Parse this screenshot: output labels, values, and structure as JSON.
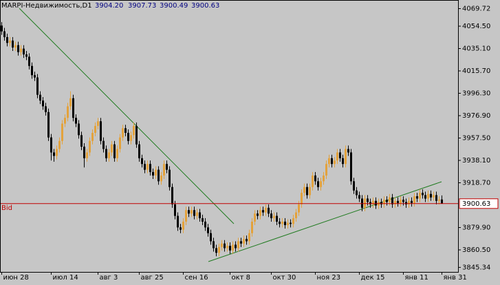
{
  "chart_data": {
    "type": "candlestick",
    "title": "MARPI-Недвижимость,D1",
    "header_values": [
      "3904.20",
      "3907.73",
      "3900.49",
      "3900.63"
    ],
    "up_color": "#e3a23c",
    "down_color": "#000000",
    "ylim": [
      3841.4,
      4075.4
    ],
    "yticks": [
      4069.72,
      {
        "value": 4054.5,
        "label": "4054.50"
      },
      {
        "value": 4035.1,
        "label": "4035.10"
      },
      {
        "value": 4015.7,
        "label": "4015.70"
      },
      {
        "value": 3996.3,
        "label": "3996.30"
      },
      {
        "value": 3976.9,
        "label": "3976.90"
      },
      {
        "value": 3957.5,
        "label": "3957.50"
      },
      {
        "value": 3938.1,
        "label": "3938.10"
      },
      {
        "value": 3918.7,
        "label": "3918.70"
      },
      {
        "value": 3879.9,
        "label": "3879.90"
      },
      {
        "value": 3860.5,
        "label": "3860.50"
      },
      3845.34
    ],
    "bid": {
      "label": "Bid",
      "value": 3900.63,
      "value_label": "3900.63",
      "color": "#c00000"
    },
    "categories": [
      "июн 28",
      null,
      null,
      null,
      null,
      null,
      null,
      null,
      null,
      null,
      null,
      null,
      null,
      null,
      null,
      null,
      null,
      null,
      "июл 14",
      null,
      null,
      null,
      null,
      null,
      null,
      null,
      null,
      null,
      null,
      null,
      null,
      null,
      null,
      null,
      null,
      "авг 3",
      null,
      null,
      null,
      null,
      null,
      null,
      null,
      null,
      null,
      null,
      null,
      null,
      null,
      null,
      "авг 25",
      null,
      null,
      null,
      null,
      null,
      null,
      null,
      null,
      null,
      null,
      null,
      null,
      null,
      null,
      null,
      "сен 16",
      null,
      null,
      null,
      null,
      null,
      null,
      null,
      null,
      null,
      null,
      null,
      null,
      null,
      null,
      null,
      null,
      "окт 8",
      null,
      null,
      null,
      null,
      null,
      null,
      null,
      null,
      null,
      null,
      null,
      null,
      null,
      null,
      "окт 30",
      null,
      null,
      null,
      null,
      null,
      null,
      null,
      null,
      null,
      null,
      null,
      null,
      null,
      null,
      null,
      "ноя 23",
      null,
      null,
      null,
      null,
      null,
      null,
      null,
      null,
      null,
      null,
      null,
      null,
      null,
      null,
      null,
      "дек 15",
      null,
      null,
      null,
      null,
      null,
      null,
      null,
      null,
      null,
      null,
      null,
      null,
      null,
      null,
      null,
      "янв 11",
      null,
      null,
      null,
      null,
      null,
      null,
      null,
      null,
      null,
      null,
      null,
      null,
      null,
      "янв 31"
    ],
    "open": [
      4055,
      4050,
      4045,
      4040,
      4042,
      4036,
      4038,
      4032,
      4035,
      4030,
      4028,
      4020,
      4012,
      4010,
      3995,
      3990,
      3985,
      3980,
      3958,
      3945,
      3942,
      3948,
      3955,
      3970,
      3975,
      3985,
      3992,
      3975,
      3970,
      3960,
      3950,
      3940,
      3945,
      3955,
      3962,
      3968,
      3972,
      3955,
      3948,
      3940,
      3945,
      3952,
      3940,
      3948,
      3958,
      3966,
      3962,
      3955,
      3960,
      3968,
      3952,
      3940,
      3935,
      3930,
      3935,
      3928,
      3925,
      3930,
      3920,
      3925,
      3935,
      3930,
      3915,
      3900,
      3890,
      3880,
      3878,
      3885,
      3895,
      3892,
      3895,
      3890,
      3893,
      3888,
      3885,
      3880,
      3875,
      3868,
      3862,
      3858,
      3863,
      3866,
      3862,
      3864,
      3860,
      3865,
      3862,
      3868,
      3866,
      3870,
      3868,
      3875,
      3885,
      3892,
      3890,
      3895,
      3893,
      3897,
      3892,
      3888,
      3890,
      3885,
      3883,
      3885,
      3882,
      3884,
      3883,
      3888,
      3893,
      3900,
      3910,
      3915,
      3908,
      3915,
      3925,
      3920,
      3915,
      3920,
      3925,
      3935,
      3940,
      3935,
      3938,
      3945,
      3940,
      3935,
      3948,
      3945,
      3920,
      3912,
      3908,
      3905,
      3897,
      3905,
      3902,
      3900,
      3903,
      3899,
      3902,
      3900,
      3904,
      3902,
      3906,
      3900,
      3903,
      3901,
      3904,
      3902,
      3900,
      3903,
      3901,
      3907,
      3905,
      3910,
      3908,
      3905,
      3909,
      3906,
      3908,
      3903,
      3904.2
    ],
    "high": [
      4058,
      4053,
      4048,
      4045,
      4045,
      4041,
      4041,
      4038,
      4038,
      4033,
      4031,
      4023,
      4015,
      4013,
      3998,
      3993,
      3988,
      3983,
      3961,
      3948,
      3951,
      3958,
      3973,
      3978,
      3988,
      3998,
      3995,
      3978,
      3973,
      3963,
      3953,
      3948,
      3958,
      3965,
      3971,
      3975,
      3975,
      3958,
      3951,
      3948,
      3955,
      3955,
      3951,
      3961,
      3969,
      3969,
      3965,
      3963,
      3971,
      3971,
      3955,
      3943,
      3938,
      3938,
      3938,
      3931,
      3933,
      3933,
      3928,
      3938,
      3938,
      3933,
      3918,
      3903,
      3893,
      3883,
      3888,
      3898,
      3898,
      3898,
      3898,
      3896,
      3896,
      3891,
      3888,
      3883,
      3878,
      3871,
      3865,
      3866,
      3869,
      3869,
      3867,
      3867,
      3868,
      3868,
      3871,
      3871,
      3873,
      3873,
      3878,
      3888,
      3895,
      3895,
      3898,
      3898,
      3900,
      3900,
      3895,
      3893,
      3893,
      3888,
      3888,
      3888,
      3887,
      3887,
      3891,
      3896,
      3903,
      3913,
      3918,
      3918,
      3918,
      3928,
      3928,
      3923,
      3923,
      3928,
      3938,
      3943,
      3943,
      3941,
      3948,
      3948,
      3943,
      3951,
      3951,
      3948,
      3923,
      3915,
      3911,
      3908,
      3908,
      3908,
      3905,
      3906,
      3906,
      3905,
      3905,
      3907,
      3907,
      3909,
      3909,
      3906,
      3906,
      3907,
      3907,
      3905,
      3906,
      3906,
      3910,
      3910,
      3913,
      3913,
      3911,
      3912,
      3912,
      3911,
      3911,
      3907,
      3907.73
    ],
    "low": [
      4047,
      4042,
      4037,
      4037,
      4033,
      4033,
      4029,
      4029,
      4027,
      4025,
      4017,
      4009,
      4007,
      3992,
      3987,
      3982,
      3977,
      3955,
      3938,
      3937,
      3939,
      3945,
      3952,
      3967,
      3972,
      3982,
      3972,
      3967,
      3957,
      3947,
      3932,
      3937,
      3942,
      3952,
      3959,
      3965,
      3952,
      3945,
      3937,
      3937,
      3942,
      3937,
      3937,
      3945,
      3955,
      3959,
      3952,
      3952,
      3957,
      3949,
      3937,
      3932,
      3927,
      3927,
      3925,
      3922,
      3922,
      3917,
      3917,
      3922,
      3927,
      3912,
      3897,
      3887,
      3877,
      3875,
      3875,
      3882,
      3889,
      3889,
      3887,
      3887,
      3885,
      3882,
      3877,
      3872,
      3865,
      3859,
      3855,
      3855,
      3860,
      3859,
      3859,
      3857,
      3857,
      3859,
      3859,
      3863,
      3863,
      3865,
      3865,
      3872,
      3882,
      3887,
      3887,
      3890,
      3890,
      3889,
      3885,
      3885,
      3882,
      3880,
      3880,
      3879,
      3879,
      3880,
      3880,
      3885,
      3890,
      3897,
      3907,
      3905,
      3905,
      3912,
      3917,
      3912,
      3912,
      3917,
      3922,
      3932,
      3932,
      3932,
      3935,
      3937,
      3932,
      3932,
      3942,
      3917,
      3909,
      3905,
      3902,
      3894,
      3894,
      3899,
      3897,
      3897,
      3896,
      3896,
      3897,
      3897,
      3899,
      3899,
      3897,
      3897,
      3898,
      3898,
      3899,
      3897,
      3897,
      3898,
      3898,
      3902,
      3902,
      3905,
      3902,
      3902,
      3903,
      3903,
      3900,
      3900,
      3900.49
    ],
    "close": [
      4050,
      4045,
      4040,
      4042,
      4036,
      4038,
      4032,
      4035,
      4030,
      4028,
      4020,
      4012,
      4010,
      3995,
      3990,
      3985,
      3980,
      3958,
      3945,
      3942,
      3948,
      3955,
      3970,
      3975,
      3985,
      3992,
      3975,
      3970,
      3960,
      3950,
      3940,
      3945,
      3955,
      3962,
      3968,
      3972,
      3955,
      3948,
      3940,
      3945,
      3952,
      3940,
      3948,
      3958,
      3966,
      3962,
      3955,
      3960,
      3968,
      3952,
      3940,
      3935,
      3930,
      3935,
      3928,
      3925,
      3930,
      3920,
      3925,
      3935,
      3930,
      3915,
      3900,
      3890,
      3880,
      3878,
      3885,
      3895,
      3892,
      3895,
      3890,
      3893,
      3888,
      3885,
      3880,
      3875,
      3868,
      3862,
      3858,
      3863,
      3866,
      3862,
      3864,
      3860,
      3865,
      3862,
      3868,
      3866,
      3870,
      3868,
      3875,
      3885,
      3892,
      3890,
      3895,
      3893,
      3897,
      3892,
      3888,
      3890,
      3885,
      3883,
      3885,
      3882,
      3884,
      3883,
      3888,
      3893,
      3900,
      3910,
      3915,
      3908,
      3915,
      3925,
      3920,
      3915,
      3920,
      3925,
      3935,
      3940,
      3935,
      3938,
      3945,
      3940,
      3935,
      3948,
      3945,
      3920,
      3912,
      3908,
      3905,
      3897,
      3905,
      3902,
      3900,
      3903,
      3899,
      3902,
      3900,
      3904,
      3902,
      3906,
      3900,
      3903,
      3901,
      3904,
      3902,
      3900,
      3903,
      3901,
      3907,
      3905,
      3910,
      3908,
      3905,
      3909,
      3906,
      3908,
      3903,
      3904.2,
      3900.63
    ]
  }
}
